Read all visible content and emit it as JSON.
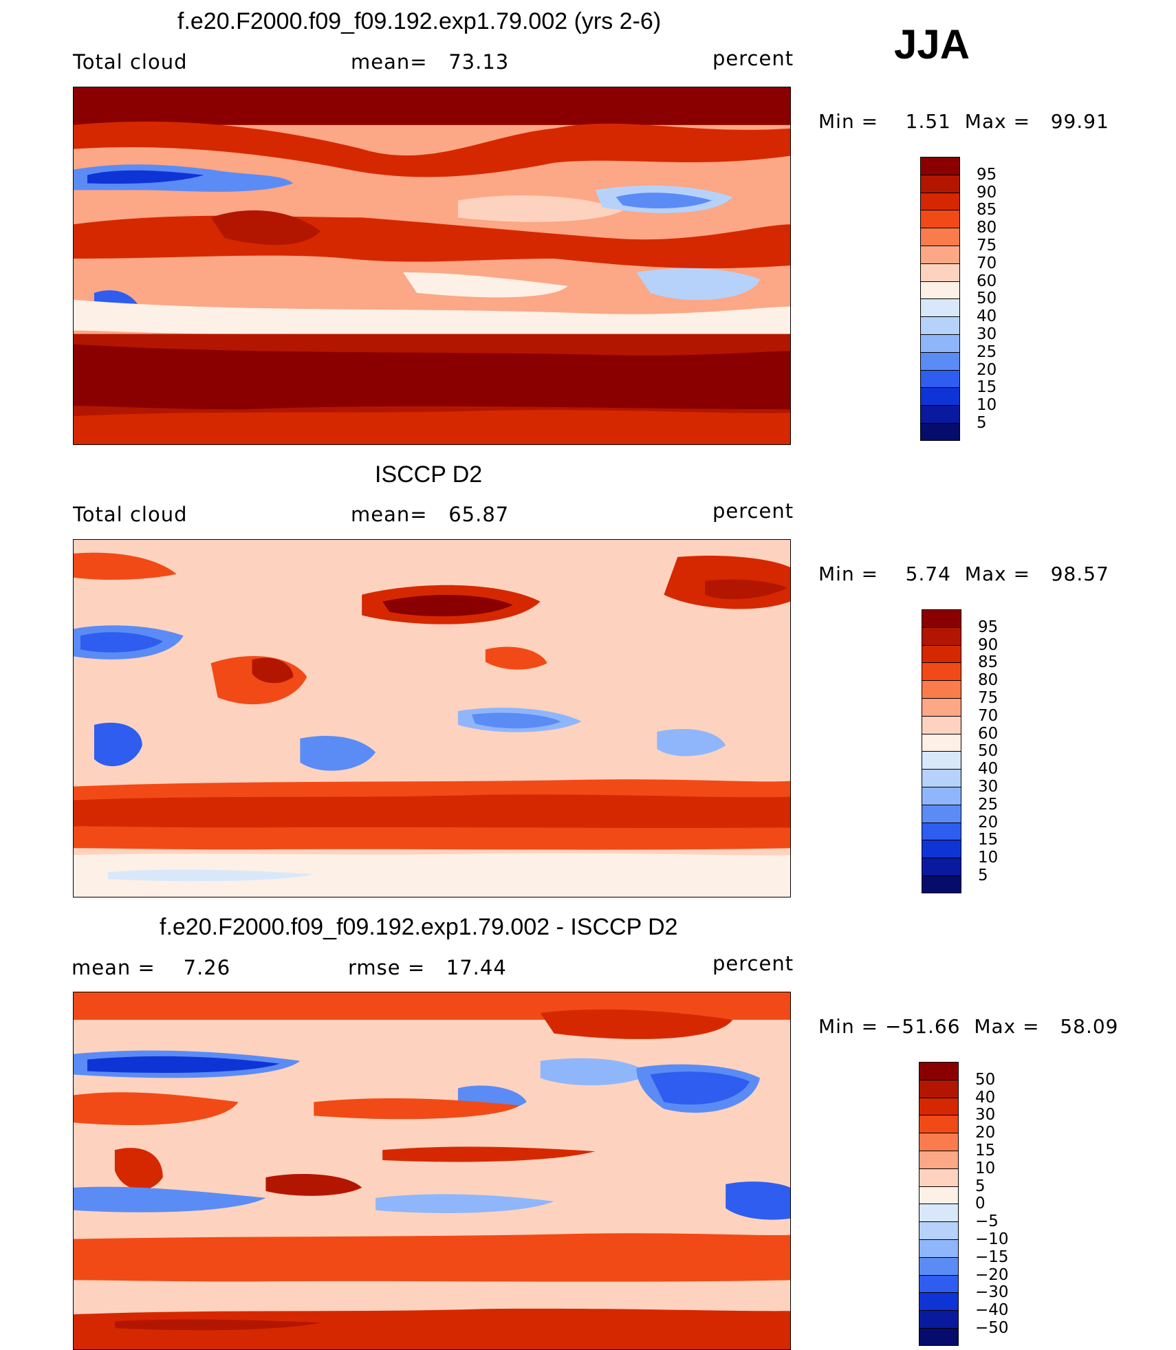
{
  "season": "JJA",
  "panels": [
    {
      "title": "f.e20.F2000.f09_f09.192.exp1.79.002 (yrs 2-6)",
      "left_label": "Total cloud",
      "mid_label": "mean=   73.13",
      "right_label": "percent",
      "minmax": "Min =    1.51  Max =   99.91",
      "scale": "abs",
      "colorbar_labels": [
        "95",
        "90",
        "85",
        "80",
        "75",
        "70",
        "60",
        "50",
        "40",
        "30",
        "25",
        "20",
        "15",
        "10",
        "5"
      ]
    },
    {
      "title": "ISCCP D2",
      "left_label": "Total cloud",
      "mid_label": "mean=   65.87",
      "right_label": "percent",
      "minmax": "Min =    5.74  Max =   98.57",
      "scale": "abs",
      "colorbar_labels": [
        "95",
        "90",
        "85",
        "80",
        "75",
        "70",
        "60",
        "50",
        "40",
        "30",
        "25",
        "20",
        "15",
        "10",
        "5"
      ]
    },
    {
      "title": "f.e20.F2000.f09_f09.192.exp1.79.002 - ISCCP D2",
      "left_label": "mean =    7.26",
      "mid_label": "rmse =   17.44",
      "right_label": "percent",
      "minmax": "Min = −51.66  Max =   58.09",
      "scale": "diff",
      "colorbar_labels": [
        "50",
        "40",
        "30",
        "20",
        "15",
        "10",
        "5",
        "0",
        "−5",
        "−10",
        "−15",
        "−20",
        "−30",
        "−40",
        "−50"
      ]
    }
  ],
  "colors": {
    "abs_scale": [
      "#8a0000",
      "#b31600",
      "#d62800",
      "#f24a16",
      "#fa7c4c",
      "#fca786",
      "#fdd3bf",
      "#fdf0e6",
      "#d8e8fa",
      "#b6d2fb",
      "#8fb6fb",
      "#5b8cf5",
      "#2e5df0",
      "#0f34d6",
      "#0a1a9e",
      "#060c6b"
    ],
    "diff_scale": [
      "#8a0000",
      "#b31600",
      "#d62800",
      "#f24a16",
      "#fa7c4c",
      "#fca786",
      "#fdd3bf",
      "#fdf0e6",
      "#d8e8fa",
      "#b6d2fb",
      "#8fb6fb",
      "#5b8cf5",
      "#2e5df0",
      "#0f34d6",
      "#0a1a9e",
      "#060c6b"
    ]
  }
}
